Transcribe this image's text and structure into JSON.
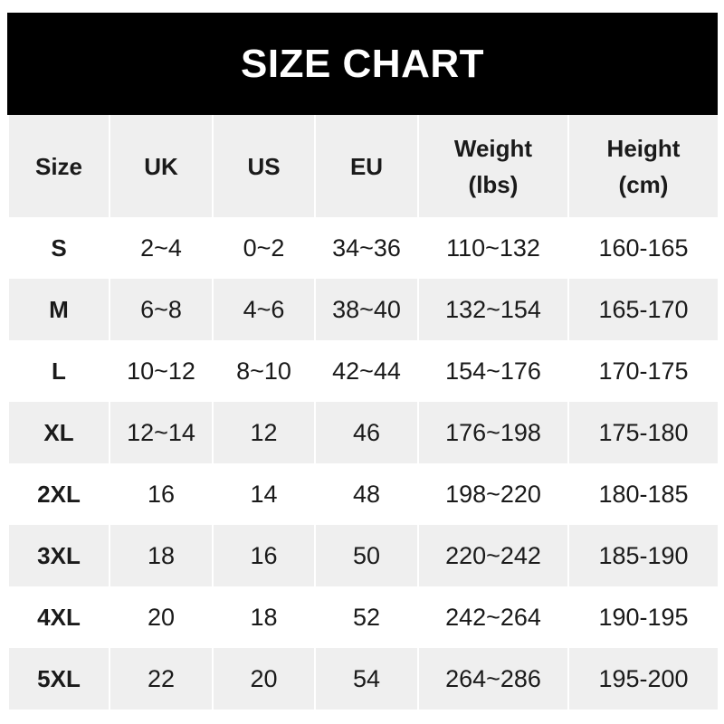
{
  "title": "SIZE CHART",
  "headers": [
    {
      "line1": "Size",
      "line2": ""
    },
    {
      "line1": "UK",
      "line2": ""
    },
    {
      "line1": "US",
      "line2": ""
    },
    {
      "line1": "EU",
      "line2": ""
    },
    {
      "line1": "Weight",
      "line2": "(lbs)"
    },
    {
      "line1": "Height",
      "line2": "(cm)"
    }
  ],
  "rows": [
    [
      "S",
      "2~4",
      "0~2",
      "34~36",
      "110~132",
      "160-165"
    ],
    [
      "M",
      "6~8",
      "4~6",
      "38~40",
      "132~154",
      "165-170"
    ],
    [
      "L",
      "10~12",
      "8~10",
      "42~44",
      "154~176",
      "170-175"
    ],
    [
      "XL",
      "12~14",
      "12",
      "46",
      "176~198",
      "175-180"
    ],
    [
      "2XL",
      "16",
      "14",
      "48",
      "198~220",
      "180-185"
    ],
    [
      "3XL",
      "18",
      "16",
      "50",
      "220~242",
      "185-190"
    ],
    [
      "4XL",
      "20",
      "18",
      "52",
      "242~264",
      "190-195"
    ],
    [
      "5XL",
      "22",
      "20",
      "54",
      "264~286",
      "195-200"
    ]
  ],
  "colors": {
    "title_bg": "#000000",
    "title_text": "#ffffff",
    "stripe": "#efefef"
  }
}
